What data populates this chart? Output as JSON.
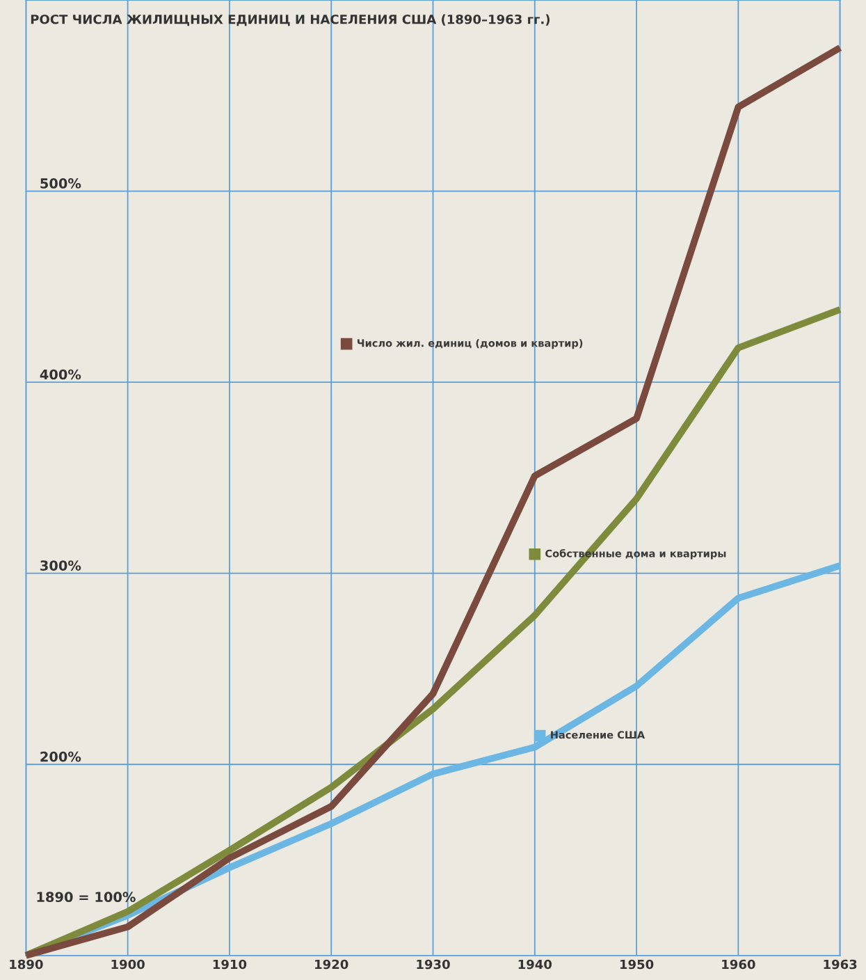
{
  "chart_data": {
    "type": "line",
    "title": "РОСТ ЧИСЛА ЖИЛИЩНЫХ ЕДИНИЦ И НАСЕЛЕНИЯ США (1890–1963 гг.)",
    "categories": [
      "1890",
      "1900",
      "1910",
      "1920",
      "1930",
      "1940",
      "1950",
      "1960",
      "1963"
    ],
    "series": [
      {
        "name": "Число жил. единиц (домов и квартир)",
        "color": "#7b4a3f",
        "values": [
          100,
          115,
          151,
          178,
          237,
          351,
          381,
          544,
          575
        ]
      },
      {
        "name": "Собственные дома и квартиры",
        "color": "#7f8b3c",
        "values": [
          100,
          123,
          155,
          188,
          229,
          278,
          339,
          418,
          438
        ]
      },
      {
        "name": "Население США",
        "color": "#6cb6e4",
        "values": [
          100,
          121,
          146,
          169,
          195,
          209,
          241,
          287,
          304
        ]
      }
    ],
    "ylim": [
      100,
      600
    ],
    "annotations": [
      "1890 = 100%"
    ],
    "yticks": [
      {
        "value": 200,
        "label": "200%"
      },
      {
        "value": 300,
        "label": "300%"
      },
      {
        "value": 400,
        "label": "400%"
      },
      {
        "value": 500,
        "label": "500%"
      }
    ],
    "grid": true,
    "legend": "right",
    "marker": "none",
    "line_style": "solid"
  }
}
